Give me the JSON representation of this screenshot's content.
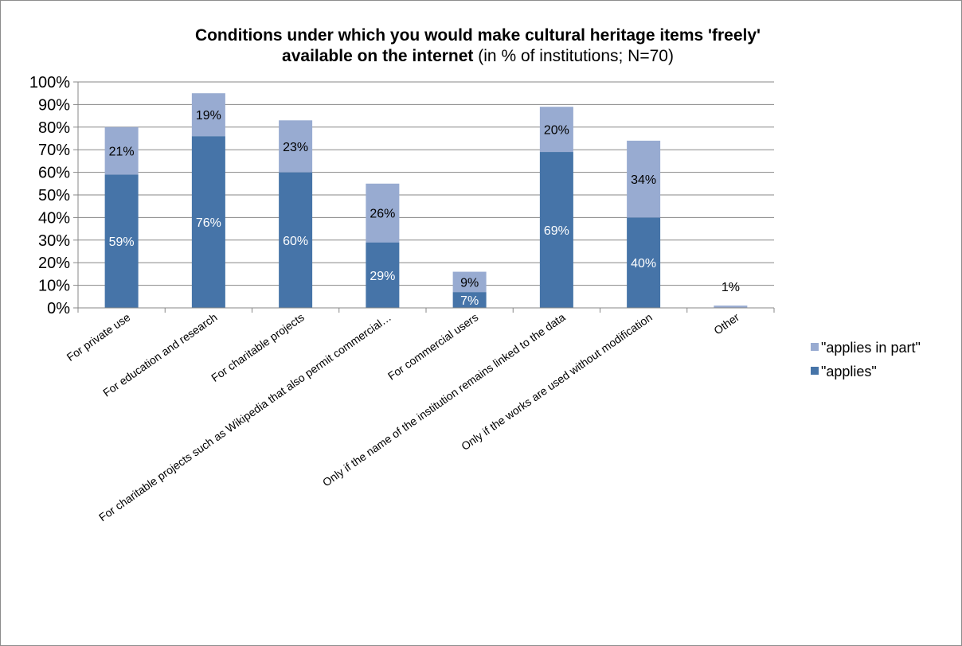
{
  "chart_data": {
    "type": "bar",
    "stacked": true,
    "title": {
      "line1": "Conditions under which you would make cultural heritage items 'freely'",
      "line2_bold": "available on the internet",
      "line2_rest": " (in % of institutions; N=70)"
    },
    "categories": [
      "For private use",
      "For education and research",
      "For charitable projects",
      "For charitable projects such as Wikipedia that also permit commercial…",
      "For commercial users",
      "Only if the name of the institution remains linked to the data",
      "Only if the works are used without modification",
      "Other"
    ],
    "series": [
      {
        "name": "\"applies\"",
        "color": "#4674a8",
        "values": [
          59,
          76,
          60,
          29,
          7,
          69,
          40,
          0
        ],
        "labels": [
          "59%",
          "76%",
          "60%",
          "29%",
          "7%",
          "69%",
          "40%",
          ""
        ]
      },
      {
        "name": "\"applies in part\"",
        "color": "#98abd1",
        "values": [
          21,
          19,
          23,
          26,
          9,
          20,
          34,
          1
        ],
        "labels": [
          "21%",
          "19%",
          "23%",
          "26%",
          "9%",
          "20%",
          "34%",
          "1%"
        ]
      }
    ],
    "yaxis": {
      "min": 0,
      "max": 100,
      "step": 10,
      "tick_labels": [
        "0%",
        "10%",
        "20%",
        "30%",
        "40%",
        "50%",
        "60%",
        "70%",
        "80%",
        "90%",
        "100%"
      ]
    },
    "legend": {
      "position": "right",
      "entries": [
        "\"applies in part\"",
        "\"applies\""
      ]
    },
    "grid": true
  }
}
